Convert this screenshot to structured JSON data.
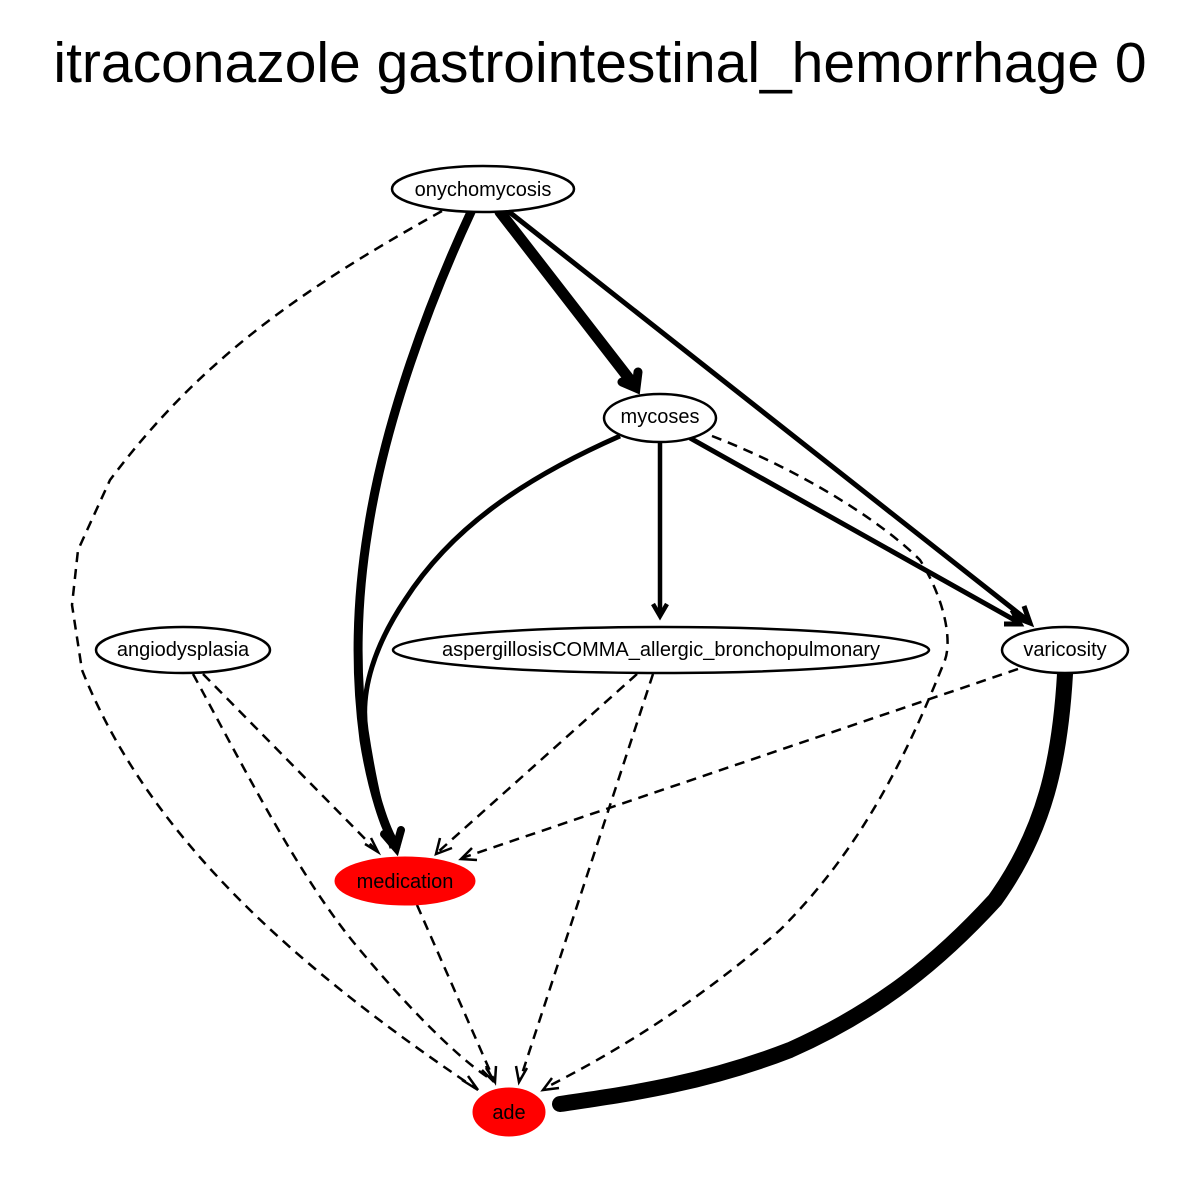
{
  "title": "itraconazole gastrointestinal_hemorrhage 0",
  "colors": {
    "node_default_fill": "#ffffff",
    "node_highlight_fill": "#ff0000",
    "edge_color": "#000000",
    "background": "#ffffff"
  },
  "nodes": [
    {
      "id": "onychomycosis",
      "label": "onychomycosis",
      "highlight": false
    },
    {
      "id": "mycoses",
      "label": "mycoses",
      "highlight": false
    },
    {
      "id": "angiodysplasia",
      "label": "angiodysplasia",
      "highlight": false
    },
    {
      "id": "aspergillosis",
      "label": "aspergillosisCOMMA_allergic_bronchopulmonary",
      "highlight": false
    },
    {
      "id": "varicosity",
      "label": "varicosity",
      "highlight": false
    },
    {
      "id": "medication",
      "label": "medication",
      "highlight": true
    },
    {
      "id": "ade",
      "label": "ade",
      "highlight": true
    }
  ],
  "edges": [
    {
      "from": "onychomycosis",
      "to": "mycoses",
      "style": "solid",
      "weight": "heavy"
    },
    {
      "from": "onychomycosis",
      "to": "medication",
      "style": "solid",
      "weight": "heavy"
    },
    {
      "from": "onychomycosis",
      "to": "varicosity",
      "style": "solid",
      "weight": "medium"
    },
    {
      "from": "onychomycosis",
      "to": "ade",
      "style": "dashed",
      "weight": "thin"
    },
    {
      "from": "mycoses",
      "to": "aspergillosis",
      "style": "solid",
      "weight": "medium"
    },
    {
      "from": "mycoses",
      "to": "medication",
      "style": "solid",
      "weight": "medium"
    },
    {
      "from": "mycoses",
      "to": "varicosity",
      "style": "solid",
      "weight": "medium"
    },
    {
      "from": "mycoses",
      "to": "ade",
      "style": "dashed",
      "weight": "thin"
    },
    {
      "from": "angiodysplasia",
      "to": "medication",
      "style": "dashed",
      "weight": "thin"
    },
    {
      "from": "angiodysplasia",
      "to": "ade",
      "style": "dashed",
      "weight": "thin"
    },
    {
      "from": "aspergillosis",
      "to": "medication",
      "style": "dashed",
      "weight": "thin"
    },
    {
      "from": "aspergillosis",
      "to": "ade",
      "style": "dashed",
      "weight": "thin"
    },
    {
      "from": "varicosity",
      "to": "medication",
      "style": "dashed",
      "weight": "thin"
    },
    {
      "from": "varicosity",
      "to": "ade",
      "style": "solid",
      "weight": "heaviest"
    },
    {
      "from": "medication",
      "to": "ade",
      "style": "dashed",
      "weight": "thin"
    }
  ]
}
